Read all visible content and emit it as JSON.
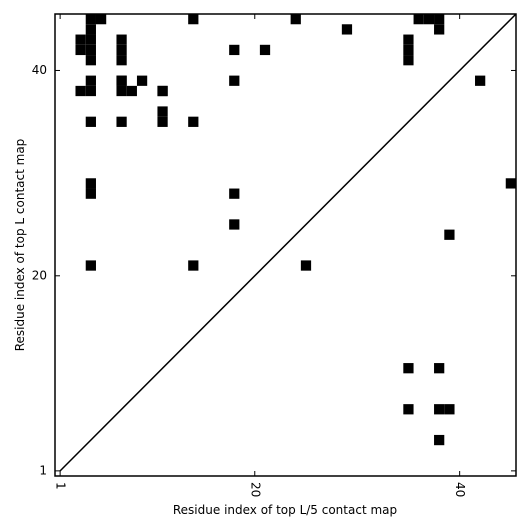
{
  "chart_data": {
    "type": "scatter",
    "marker": "square",
    "color": "#000000",
    "x_label": "Residue index of top L/5 contact map",
    "y_label": "Residue index of top L contact map",
    "x": [
      3,
      3,
      3,
      4,
      4,
      4,
      4,
      4,
      4,
      4,
      4,
      4,
      4,
      4,
      5,
      7,
      7,
      7,
      7,
      7,
      7,
      7,
      8,
      9,
      11,
      11,
      11,
      11,
      14,
      14,
      14,
      18,
      18,
      18,
      18,
      21,
      24,
      25,
      29,
      35,
      35,
      35,
      35,
      35,
      36,
      37,
      38,
      38,
      38,
      38,
      38,
      39,
      39,
      42,
      45
    ],
    "y": [
      43,
      42,
      38,
      45,
      44,
      43,
      42,
      41,
      39,
      38,
      35,
      28,
      21,
      29,
      45,
      43,
      42,
      41,
      39,
      38,
      35,
      39,
      38,
      39,
      38,
      36,
      35,
      38,
      35,
      21,
      45,
      42,
      39,
      25,
      28,
      42,
      45,
      21,
      44,
      43,
      41,
      11,
      7,
      42,
      45,
      45,
      44,
      11,
      7,
      4,
      45,
      7,
      24,
      39,
      29
    ],
    "diagonal": true,
    "xlim": [
      0.5,
      45.5
    ],
    "ylim": [
      0.5,
      45.5
    ],
    "xticks": [
      1,
      20,
      40
    ],
    "yticks": [
      1,
      20,
      40
    ]
  }
}
